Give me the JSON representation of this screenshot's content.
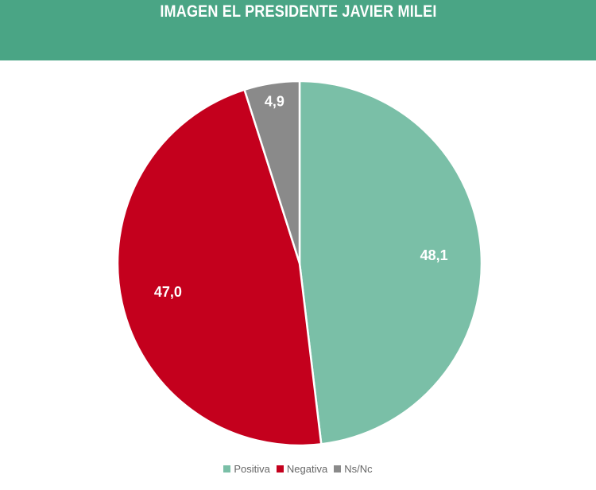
{
  "chart_data": {
    "type": "pie",
    "title": "IMAGEN EL PRESIDENTE JAVIER MILEI",
    "labels": [
      "Positiva",
      "Negativa",
      "Ns/Nc"
    ],
    "values": [
      48.1,
      47.0,
      4.9
    ],
    "value_labels": [
      "48,1",
      "47,0",
      "4,9"
    ],
    "colors": [
      "#7abfa7",
      "#c4001d",
      "#8a8a8a"
    ],
    "start": "12 o'clock",
    "direction": "clockwise",
    "legend": "bottom-center"
  },
  "header": {
    "background": "#4aa585"
  }
}
